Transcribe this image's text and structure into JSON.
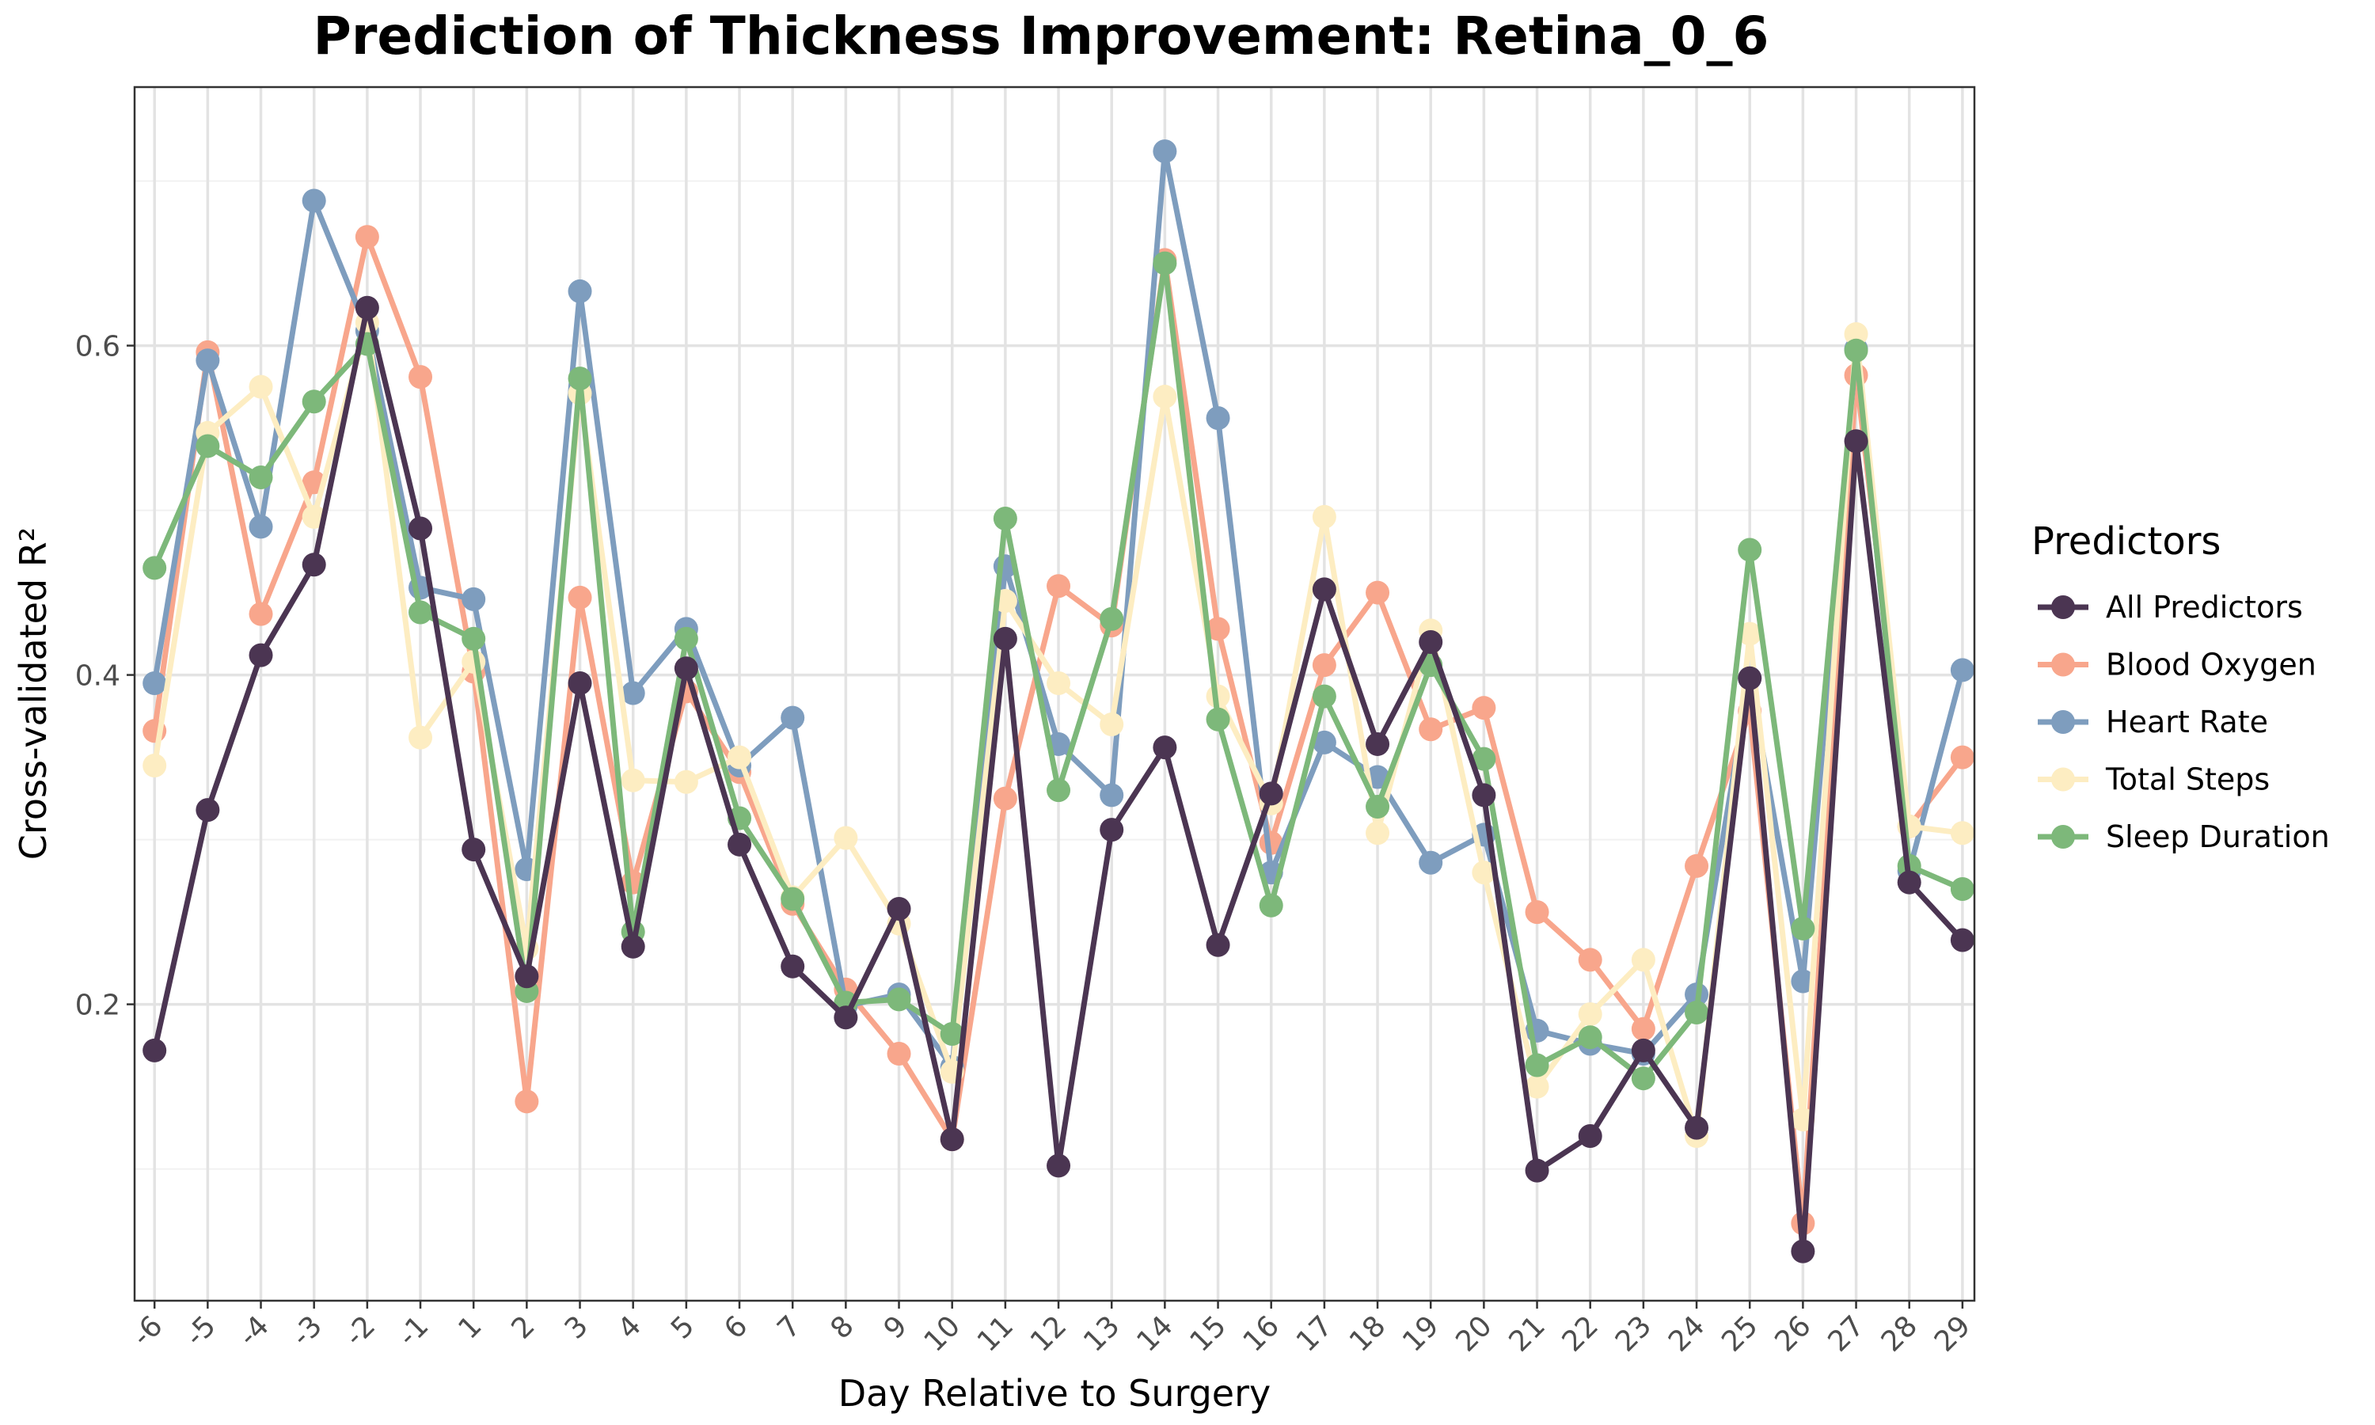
{
  "chart_data": {
    "type": "line",
    "title": "Prediction of Thickness Improvement: Retina_0_6",
    "xlabel": "Day Relative to Surgery",
    "ylabel": "Cross-validated R²",
    "categories": [
      "-6",
      "-5",
      "-4",
      "-3",
      "-2",
      "-1",
      "1",
      "2",
      "3",
      "4",
      "5",
      "6",
      "7",
      "8",
      "9",
      "10",
      "11",
      "12",
      "13",
      "14",
      "15",
      "16",
      "17",
      "18",
      "19",
      "20",
      "21",
      "22",
      "23",
      "24",
      "25",
      "26",
      "27",
      "28",
      "29"
    ],
    "ylim": [
      0.02,
      0.757
    ],
    "yticks": [
      0.2,
      0.4,
      0.6
    ],
    "ytick_labels": [
      "0.2",
      "0.4",
      "0.6"
    ],
    "grid": true,
    "legend": {
      "title": "Predictors",
      "position": "right"
    },
    "series": [
      {
        "name": "Blood Oxygen",
        "color": "#F8A68C",
        "values": [
          0.366,
          0.596,
          0.437,
          0.517,
          0.666,
          0.581,
          0.402,
          0.141,
          0.447,
          0.274,
          0.39,
          0.341,
          0.261,
          0.209,
          0.17,
          0.118,
          0.325,
          0.454,
          0.43,
          0.652,
          0.428,
          0.298,
          0.406,
          0.45,
          0.367,
          0.38,
          0.256,
          0.227,
          0.185,
          0.284,
          0.378,
          0.067,
          0.582,
          0.308,
          0.35
        ]
      },
      {
        "name": "Heart Rate",
        "color": "#7E9DBE",
        "values": [
          0.395,
          0.591,
          0.49,
          0.688,
          0.609,
          0.453,
          0.446,
          0.282,
          0.633,
          0.389,
          0.428,
          0.345,
          0.374,
          0.199,
          0.206,
          0.162,
          0.466,
          0.358,
          0.327,
          0.718,
          0.556,
          0.28,
          0.359,
          0.338,
          0.286,
          0.303,
          0.184,
          0.176,
          0.17,
          0.206,
          0.398,
          0.214,
          0.598,
          0.281,
          0.403
        ]
      },
      {
        "name": "Total Steps",
        "color": "#FDEDC2",
        "values": [
          0.345,
          0.547,
          0.575,
          0.496,
          0.614,
          0.362,
          0.408,
          0.234,
          0.571,
          0.336,
          0.335,
          0.35,
          0.265,
          0.301,
          0.249,
          0.159,
          0.445,
          0.395,
          0.37,
          0.569,
          0.387,
          0.322,
          0.496,
          0.304,
          0.427,
          0.28,
          0.15,
          0.194,
          0.227,
          0.12,
          0.425,
          0.13,
          0.607,
          0.308,
          0.304
        ]
      },
      {
        "name": "Sleep Duration",
        "color": "#7DB87A",
        "values": [
          0.465,
          0.539,
          0.52,
          0.566,
          0.601,
          0.438,
          0.422,
          0.208,
          0.58,
          0.244,
          0.422,
          0.313,
          0.264,
          0.201,
          0.203,
          0.182,
          0.495,
          0.33,
          0.434,
          0.65,
          0.373,
          0.26,
          0.387,
          0.32,
          0.406,
          0.349,
          0.163,
          0.18,
          0.155,
          0.195,
          0.476,
          0.246,
          0.597,
          0.284,
          0.27
        ]
      },
      {
        "name": "All Predictors",
        "color": "#4B3552",
        "values": [
          0.172,
          0.318,
          0.412,
          0.467,
          0.623,
          0.489,
          0.294,
          0.217,
          0.395,
          0.235,
          0.404,
          0.297,
          0.223,
          0.192,
          0.258,
          0.118,
          0.422,
          0.102,
          0.306,
          0.356,
          0.236,
          0.328,
          0.452,
          0.358,
          0.42,
          0.327,
          0.099,
          0.12,
          0.172,
          0.125,
          0.398,
          0.05,
          0.542,
          0.274,
          0.239
        ]
      }
    ],
    "legend_order": [
      "All Predictors",
      "Blood Oxygen",
      "Heart Rate",
      "Total Steps",
      "Sleep Duration"
    ]
  }
}
